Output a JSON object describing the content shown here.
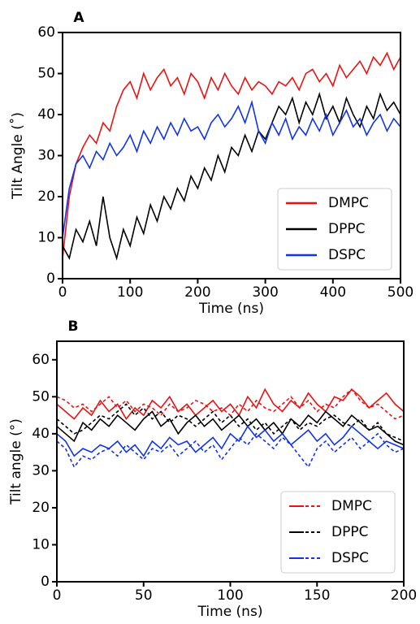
{
  "chart_data": [
    {
      "type": "line",
      "label": "A",
      "xlabel": "Time (ns)",
      "ylabel": "Tilt Angle (˚)",
      "xlim": [
        0,
        500
      ],
      "ylim": [
        0,
        60
      ],
      "xticks": [
        0,
        100,
        200,
        300,
        400,
        500
      ],
      "yticks": [
        0,
        10,
        20,
        30,
        40,
        50,
        60
      ],
      "legend": "lower right",
      "x": [
        0,
        10,
        20,
        30,
        40,
        50,
        60,
        70,
        80,
        90,
        100,
        110,
        120,
        130,
        140,
        150,
        160,
        170,
        180,
        190,
        200,
        210,
        220,
        230,
        240,
        250,
        260,
        270,
        280,
        290,
        300,
        310,
        320,
        330,
        340,
        350,
        360,
        370,
        380,
        390,
        400,
        410,
        420,
        430,
        440,
        450,
        460,
        470,
        480,
        490,
        500
      ],
      "series": [
        {
          "name": "DMPC",
          "color": "#ee1111",
          "values": [
            5,
            20,
            28,
            32,
            35,
            33,
            38,
            36,
            42,
            46,
            48,
            44,
            50,
            46,
            49,
            51,
            47,
            49,
            45,
            50,
            48,
            44,
            49,
            46,
            50,
            47,
            45,
            49,
            46,
            48,
            47,
            45,
            48,
            47,
            49,
            46,
            50,
            51,
            48,
            50,
            47,
            52,
            49,
            51,
            53,
            50,
            54,
            52,
            55,
            51,
            54
          ]
        },
        {
          "name": "DPPC",
          "color": "#000000",
          "values": [
            8,
            5,
            12,
            9,
            14,
            8,
            20,
            10,
            5,
            12,
            8,
            15,
            11,
            18,
            14,
            20,
            17,
            22,
            19,
            25,
            22,
            27,
            24,
            30,
            26,
            32,
            30,
            35,
            31,
            36,
            34,
            38,
            42,
            40,
            44,
            38,
            43,
            40,
            45,
            39,
            42,
            38,
            44,
            40,
            37,
            42,
            39,
            45,
            41,
            43,
            40
          ]
        },
        {
          "name": "DSPC",
          "color": "#1133ee",
          "values": [
            10,
            22,
            28,
            30,
            27,
            31,
            29,
            33,
            30,
            32,
            35,
            31,
            36,
            33,
            37,
            34,
            38,
            35,
            39,
            36,
            37,
            34,
            38,
            40,
            37,
            39,
            42,
            38,
            43,
            36,
            33,
            38,
            35,
            39,
            34,
            37,
            35,
            39,
            36,
            40,
            35,
            38,
            41,
            37,
            39,
            35,
            38,
            40,
            36,
            39,
            37
          ]
        }
      ]
    },
    {
      "type": "line",
      "label": "B",
      "xlabel": "Time (ns)",
      "ylabel": "Tilt angle (°)",
      "xlim": [
        0,
        200
      ],
      "ylim": [
        0,
        65
      ],
      "xticks": [
        0,
        50,
        100,
        150,
        200
      ],
      "yticks": [
        0,
        10,
        20,
        30,
        40,
        50,
        60
      ],
      "legend": "lower right",
      "x": [
        0,
        5,
        10,
        15,
        20,
        25,
        30,
        35,
        40,
        45,
        50,
        55,
        60,
        65,
        70,
        75,
        80,
        85,
        90,
        95,
        100,
        105,
        110,
        115,
        120,
        125,
        130,
        135,
        140,
        145,
        150,
        155,
        160,
        165,
        170,
        175,
        180,
        185,
        190,
        195,
        200
      ],
      "series": [
        {
          "name": "DMPC",
          "color": "#ee1111",
          "runs": [
            {
              "style": "solid",
              "values": [
                48,
                46,
                44,
                47,
                45,
                49,
                46,
                48,
                44,
                47,
                45,
                49,
                47,
                50,
                46,
                48,
                45,
                47,
                49,
                46,
                48,
                45,
                50,
                47,
                52,
                48,
                46,
                49,
                47,
                51,
                48,
                46,
                50,
                49,
                52,
                50,
                47,
                49,
                51,
                48,
                46
              ]
            },
            {
              "style": "dashed",
              "values": [
                50,
                49,
                47,
                48,
                46,
                48,
                50,
                47,
                49,
                46,
                48,
                47,
                45,
                48,
                46,
                47,
                49,
                48,
                46,
                47,
                45,
                48,
                46,
                49,
                47,
                46,
                48,
                50,
                47,
                49,
                46,
                48,
                47,
                50,
                52,
                49,
                47,
                48,
                46,
                44,
                45
              ]
            }
          ]
        },
        {
          "name": "DPPC",
          "color": "#000000",
          "runs": [
            {
              "style": "solid",
              "values": [
                42,
                40,
                38,
                43,
                41,
                44,
                42,
                45,
                43,
                41,
                44,
                46,
                42,
                44,
                40,
                43,
                45,
                42,
                44,
                41,
                43,
                45,
                42,
                44,
                41,
                43,
                40,
                44,
                42,
                45,
                43,
                46,
                44,
                42,
                45,
                43,
                41,
                42,
                40,
                38,
                37
              ]
            },
            {
              "style": "dashed",
              "values": [
                44,
                42,
                40,
                41,
                43,
                45,
                44,
                46,
                48,
                45,
                47,
                44,
                46,
                43,
                45,
                44,
                42,
                44,
                46,
                43,
                45,
                42,
                44,
                41,
                43,
                40,
                42,
                44,
                41,
                43,
                42,
                44,
                45,
                43,
                42,
                44,
                41,
                43,
                40,
                39,
                38
              ]
            }
          ]
        },
        {
          "name": "DSPC",
          "color": "#1133ee",
          "runs": [
            {
              "style": "solid",
              "values": [
                40,
                38,
                34,
                36,
                35,
                37,
                36,
                38,
                35,
                37,
                34,
                38,
                36,
                39,
                37,
                38,
                35,
                37,
                39,
                36,
                40,
                38,
                42,
                39,
                41,
                38,
                40,
                37,
                39,
                41,
                38,
                40,
                37,
                39,
                42,
                40,
                38,
                36,
                38,
                37,
                36
              ]
            },
            {
              "style": "dashed",
              "values": [
                38,
                36,
                31,
                34,
                33,
                35,
                36,
                34,
                37,
                35,
                33,
                36,
                35,
                37,
                34,
                36,
                38,
                35,
                37,
                33,
                36,
                39,
                37,
                40,
                38,
                36,
                39,
                37,
                34,
                31,
                36,
                38,
                35,
                37,
                39,
                36,
                38,
                40,
                37,
                35,
                36
              ]
            }
          ]
        }
      ]
    }
  ]
}
